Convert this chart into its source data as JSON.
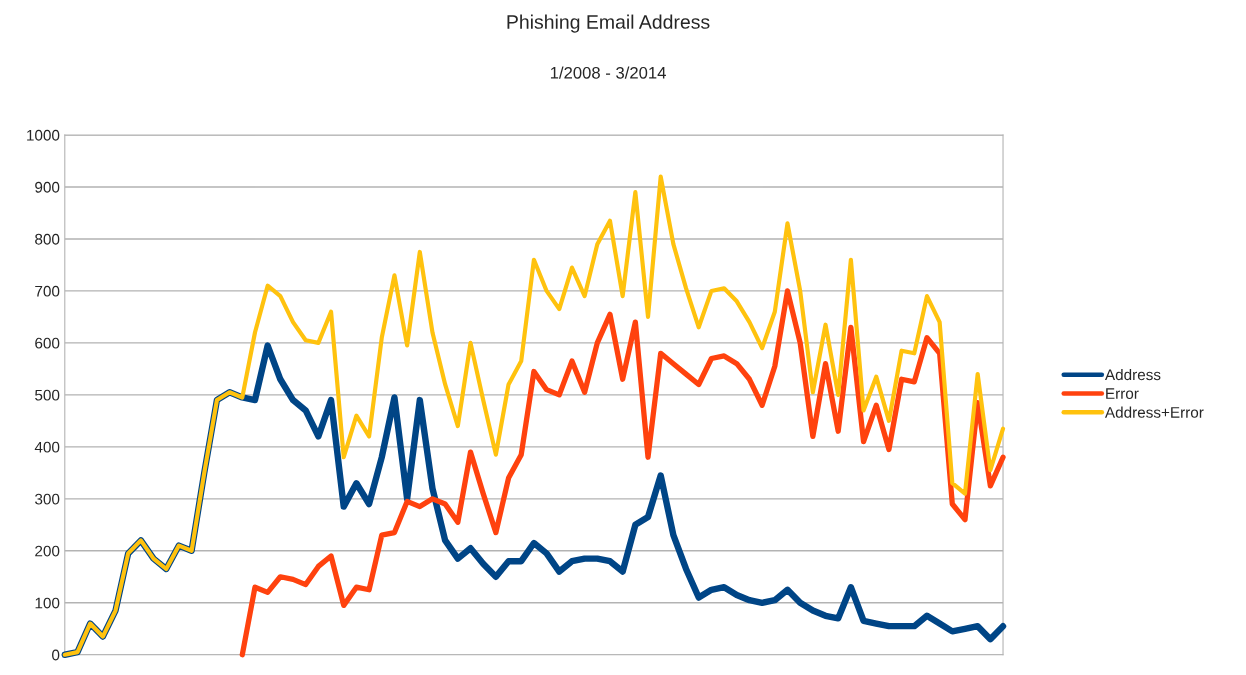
{
  "chart_data": {
    "type": "line",
    "title": "Phishing Email Address",
    "subtitle": "1/2008 - 3/2014",
    "categories": [
      null,
      null,
      null,
      null,
      null,
      null,
      null,
      null,
      null,
      null,
      null,
      null,
      null,
      null,
      null,
      null,
      null,
      null,
      null,
      null,
      null,
      null,
      null,
      null,
      null,
      null,
      null,
      null,
      null,
      null,
      null,
      null,
      null,
      null,
      null,
      null,
      null,
      null,
      null,
      null,
      null,
      null,
      null,
      null,
      null,
      null,
      null,
      null,
      null,
      null,
      null,
      null,
      null,
      null,
      null,
      null,
      null,
      null,
      null,
      null,
      null,
      null,
      null,
      null,
      null,
      null,
      null,
      null,
      null,
      null,
      null,
      null,
      null,
      null,
      null
    ],
    "series": [
      {
        "name": "Address",
        "color": "#004586",
        "values": [
          0,
          5,
          60,
          35,
          85,
          195,
          220,
          185,
          165,
          210,
          200,
          350,
          490,
          505,
          495,
          490,
          595,
          530,
          490,
          470,
          420,
          490,
          285,
          330,
          290,
          380,
          495,
          300,
          490,
          320,
          220,
          185,
          205,
          175,
          150,
          180,
          180,
          215,
          195,
          160,
          180,
          185,
          185,
          180,
          160,
          250,
          265,
          345,
          230,
          165,
          110,
          125,
          130,
          115,
          105,
          100,
          105,
          125,
          100,
          85,
          75,
          70,
          130,
          65,
          60,
          55,
          55,
          55,
          75,
          60,
          45,
          50,
          55,
          30,
          55
        ]
      },
      {
        "name": "Error",
        "color": "#ff420e",
        "values": [
          null,
          null,
          null,
          null,
          null,
          null,
          null,
          null,
          null,
          null,
          null,
          null,
          null,
          null,
          0,
          130,
          120,
          150,
          145,
          135,
          170,
          190,
          95,
          130,
          125,
          230,
          235,
          295,
          285,
          300,
          290,
          255,
          390,
          310,
          235,
          340,
          385,
          545,
          510,
          500,
          565,
          505,
          600,
          655,
          530,
          640,
          380,
          580,
          560,
          540,
          520,
          570,
          575,
          560,
          530,
          480,
          555,
          700,
          600,
          420,
          560,
          430,
          630,
          410,
          480,
          395,
          530,
          525,
          610,
          580,
          290,
          260,
          485,
          325,
          380
        ]
      },
      {
        "name": "Address+Error",
        "color": "#ffc20e",
        "values": [
          0,
          5,
          60,
          35,
          85,
          195,
          220,
          185,
          165,
          210,
          200,
          350,
          490,
          505,
          495,
          620,
          710,
          690,
          640,
          605,
          600,
          660,
          380,
          460,
          420,
          610,
          730,
          595,
          775,
          620,
          520,
          440,
          600,
          490,
          385,
          520,
          565,
          760,
          700,
          665,
          745,
          690,
          790,
          835,
          690,
          890,
          650,
          920,
          790,
          705,
          630,
          700,
          705,
          680,
          640,
          590,
          660,
          830,
          700,
          505,
          635,
          500,
          760,
          470,
          535,
          450,
          585,
          580,
          690,
          640,
          330,
          310,
          540,
          355,
          435
        ]
      }
    ],
    "ylim": [
      0,
      1000
    ],
    "yticks": [
      0,
      100,
      200,
      300,
      400,
      500,
      600,
      700,
      800,
      900,
      1000
    ],
    "grid": "y",
    "legend": "right",
    "tick_labels": "y"
  }
}
